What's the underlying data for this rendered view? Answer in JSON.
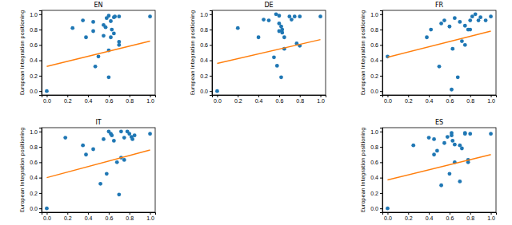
{
  "chart_data": [
    {
      "type": "scatter",
      "title": "EN",
      "ylabel": "European Integration positioning",
      "xlim": [
        -0.05,
        1.05
      ],
      "ylim": [
        -0.05,
        1.05
      ],
      "xticks": [
        {
          "value": 0,
          "label": "0.0"
        },
        {
          "value": 0.2,
          "label": "0.2"
        },
        {
          "value": 0.4,
          "label": "0.4"
        },
        {
          "value": 0.6,
          "label": "0.6"
        },
        {
          "value": 0.8,
          "label": "0.8"
        },
        {
          "value": 1,
          "label": "1.0"
        }
      ],
      "yticks": [
        {
          "value": 0,
          "label": "0.0"
        },
        {
          "value": 0.2,
          "label": "0.2"
        },
        {
          "value": 0.4,
          "label": "0.4"
        },
        {
          "value": 0.6,
          "label": "0.6"
        },
        {
          "value": 0.8,
          "label": "0.8"
        },
        {
          "value": 1,
          "label": "1.0"
        }
      ],
      "series": [
        {
          "type": "scatter",
          "color": "#1f77b4",
          "marker": "circle",
          "x": [
            0,
            0.25,
            0.35,
            0.38,
            0.45,
            0.45,
            0.47,
            0.5,
            0.55,
            0.55,
            0.57,
            0.58,
            0.6,
            0.6,
            0.6,
            0.62,
            0.63,
            0.65,
            0.65,
            0.66,
            0.7,
            0.7,
            0.7,
            1.0,
            0.62
          ],
          "values": [
            0,
            0.82,
            0.92,
            0.7,
            0.9,
            0.78,
            0.32,
            0.45,
            0.72,
            0.86,
            0.83,
            0.95,
            0.98,
            0.18,
            0.53,
            0.91,
            0.8,
            0.75,
            0.96,
            0.97,
            0.6,
            0.64,
            0.97,
            0.97,
            0.7
          ]
        },
        {
          "type": "line",
          "color": "#ff7f0e",
          "line_style": "solid",
          "x": [
            0,
            1
          ],
          "values": [
            0.32,
            0.65
          ]
        }
      ]
    },
    {
      "type": "scatter",
      "title": "DE",
      "ylabel": "European Integration positioning",
      "xlim": [
        -0.05,
        1.05
      ],
      "ylim": [
        -0.05,
        1.05
      ],
      "xticks": [
        {
          "value": 0,
          "label": "0.0"
        },
        {
          "value": 0.2,
          "label": "0.2"
        },
        {
          "value": 0.4,
          "label": "0.4"
        },
        {
          "value": 0.6,
          "label": "0.6"
        },
        {
          "value": 0.8,
          "label": "0.8"
        },
        {
          "value": 1,
          "label": "1.0"
        }
      ],
      "yticks": [
        {
          "value": 0,
          "label": "0.0"
        },
        {
          "value": 0.2,
          "label": "0.2"
        },
        {
          "value": 0.4,
          "label": "0.4"
        },
        {
          "value": 0.6,
          "label": "0.6"
        },
        {
          "value": 0.8,
          "label": "0.8"
        },
        {
          "value": 1,
          "label": "1.0"
        }
      ],
      "series": [
        {
          "type": "scatter",
          "color": "#1f77b4",
          "marker": "circle",
          "x": [
            0,
            0.2,
            0.4,
            0.45,
            0.5,
            0.55,
            0.57,
            0.58,
            0.6,
            0.6,
            0.62,
            0.62,
            0.63,
            0.63,
            0.65,
            0.65,
            0.7,
            0.75,
            0.77,
            0.8,
            0.8,
            1.0,
            0.6,
            0.72
          ],
          "values": [
            0,
            0.82,
            0.7,
            0.93,
            0.92,
            0.44,
            1.0,
            0.33,
            0.98,
            0.88,
            0.84,
            0.18,
            0.8,
            0.76,
            0.55,
            0.7,
            0.97,
            0.97,
            0.62,
            0.97,
            0.59,
            0.97,
            0.78,
            0.93
          ]
        },
        {
          "type": "line",
          "color": "#ff7f0e",
          "line_style": "solid",
          "x": [
            0,
            1
          ],
          "values": [
            0.36,
            0.67
          ]
        }
      ]
    },
    {
      "type": "scatter",
      "title": "FR",
      "ylabel": "European Integration positioning",
      "xlim": [
        -0.05,
        1.05
      ],
      "ylim": [
        -0.05,
        1.05
      ],
      "xticks": [
        {
          "value": 0,
          "label": "0.0"
        },
        {
          "value": 0.2,
          "label": "0.2"
        },
        {
          "value": 0.4,
          "label": "0.4"
        },
        {
          "value": 0.6,
          "label": "0.6"
        },
        {
          "value": 0.8,
          "label": "0.8"
        },
        {
          "value": 1,
          "label": "1.0"
        }
      ],
      "yticks": [
        {
          "value": 0,
          "label": "0.0"
        },
        {
          "value": 0.2,
          "label": "0.2"
        },
        {
          "value": 0.4,
          "label": "0.4"
        },
        {
          "value": 0.6,
          "label": "0.6"
        },
        {
          "value": 0.8,
          "label": "0.8"
        },
        {
          "value": 1,
          "label": "1.0"
        }
      ],
      "series": [
        {
          "type": "scatter",
          "color": "#1f77b4",
          "marker": "circle",
          "x": [
            0,
            0.38,
            0.42,
            0.5,
            0.52,
            0.55,
            0.6,
            0.62,
            0.63,
            0.65,
            0.68,
            0.7,
            0.72,
            0.75,
            0.75,
            0.78,
            0.8,
            0.8,
            0.82,
            0.85,
            0.88,
            0.9,
            0.95,
            1.0
          ],
          "values": [
            0.45,
            0.7,
            0.8,
            0.32,
            0.88,
            0.92,
            0.84,
            0.02,
            0.55,
            0.95,
            0.18,
            0.9,
            0.65,
            0.85,
            0.6,
            0.8,
            0.92,
            0.8,
            0.97,
            1.0,
            0.92,
            0.96,
            0.92,
            0.97
          ]
        },
        {
          "type": "line",
          "color": "#ff7f0e",
          "line_style": "solid",
          "x": [
            0,
            1
          ],
          "values": [
            0.44,
            0.78
          ]
        }
      ]
    },
    {
      "type": "scatter",
      "title": "IT",
      "ylabel": "European Integration positioning",
      "xlim": [
        -0.05,
        1.05
      ],
      "ylim": [
        -0.05,
        1.05
      ],
      "xticks": [
        {
          "value": 0,
          "label": "0.0"
        },
        {
          "value": 0.2,
          "label": "0.2"
        },
        {
          "value": 0.4,
          "label": "0.4"
        },
        {
          "value": 0.6,
          "label": "0.6"
        },
        {
          "value": 0.8,
          "label": "0.8"
        },
        {
          "value": 1,
          "label": "1.0"
        }
      ],
      "yticks": [
        {
          "value": 0,
          "label": "0.0"
        },
        {
          "value": 0.2,
          "label": "0.2"
        },
        {
          "value": 0.4,
          "label": "0.4"
        },
        {
          "value": 0.6,
          "label": "0.6"
        },
        {
          "value": 0.8,
          "label": "0.8"
        },
        {
          "value": 1,
          "label": "1.0"
        }
      ],
      "series": [
        {
          "type": "scatter",
          "color": "#1f77b4",
          "marker": "circle",
          "x": [
            0,
            0.18,
            0.35,
            0.38,
            0.45,
            0.52,
            0.55,
            0.58,
            0.6,
            0.62,
            0.63,
            0.65,
            0.68,
            0.7,
            0.72,
            0.72,
            0.75,
            0.78,
            0.8,
            0.82,
            0.83,
            0.85,
            0.75,
            1.0
          ],
          "values": [
            0,
            0.92,
            0.82,
            0.7,
            0.77,
            0.32,
            0.9,
            0.45,
            1.0,
            0.97,
            0.95,
            0.88,
            0.6,
            0.18,
            1.0,
            0.66,
            0.92,
            1.0,
            0.97,
            0.93,
            0.9,
            0.95,
            0.63,
            0.97
          ]
        },
        {
          "type": "line",
          "color": "#ff7f0e",
          "line_style": "solid",
          "x": [
            0,
            1
          ],
          "values": [
            0.4,
            0.76
          ]
        }
      ]
    },
    {
      "type": "scatter",
      "title": "ES",
      "ylabel": "European Integration positioning",
      "xlim": [
        -0.05,
        1.05
      ],
      "ylim": [
        -0.05,
        1.05
      ],
      "xticks": [
        {
          "value": 0,
          "label": "0.0"
        },
        {
          "value": 0.2,
          "label": "0.2"
        },
        {
          "value": 0.4,
          "label": "0.4"
        },
        {
          "value": 0.6,
          "label": "0.6"
        },
        {
          "value": 0.8,
          "label": "0.8"
        },
        {
          "value": 1,
          "label": "1.0"
        }
      ],
      "yticks": [
        {
          "value": 0,
          "label": "0.0"
        },
        {
          "value": 0.2,
          "label": "0.2"
        },
        {
          "value": 0.4,
          "label": "0.4"
        },
        {
          "value": 0.6,
          "label": "0.6"
        },
        {
          "value": 0.8,
          "label": "0.8"
        },
        {
          "value": 1,
          "label": "1.0"
        }
      ],
      "series": [
        {
          "type": "scatter",
          "color": "#1f77b4",
          "marker": "circle",
          "x": [
            0,
            0.25,
            0.4,
            0.45,
            0.45,
            0.48,
            0.52,
            0.55,
            0.58,
            0.6,
            0.62,
            0.62,
            0.63,
            0.65,
            0.65,
            0.7,
            0.7,
            0.72,
            0.75,
            0.75,
            0.78,
            0.78,
            0.8,
            1.0
          ],
          "values": [
            0,
            0.82,
            0.92,
            0.9,
            0.7,
            0.75,
            0.3,
            0.85,
            0.93,
            0.45,
            0.98,
            0.95,
            0.88,
            0.83,
            0.6,
            0.82,
            0.35,
            0.78,
            0.98,
            0.97,
            0.6,
            0.63,
            0.97,
            0.97
          ]
        },
        {
          "type": "line",
          "color": "#ff7f0e",
          "line_style": "solid",
          "x": [
            0,
            1
          ],
          "values": [
            0.37,
            0.7
          ]
        }
      ]
    }
  ]
}
